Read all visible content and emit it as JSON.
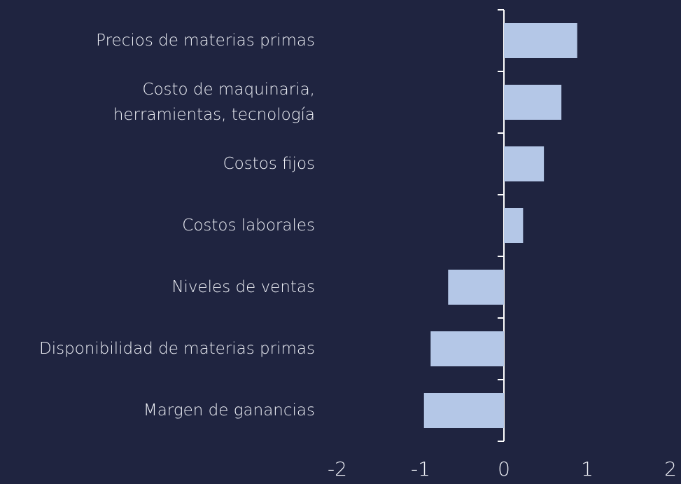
{
  "chart_data": {
    "type": "barh",
    "categories": [
      "Precios de materias primas",
      "Costo de maquinaria,\nherramientas, tecnología",
      "Costos fijos",
      "Costos laborales",
      "Niveles de ventas",
      "Disponibilidad de materias primas",
      "Margen de ganancias"
    ],
    "values": [
      0.88,
      0.69,
      0.48,
      0.23,
      -0.67,
      -0.88,
      -0.96
    ],
    "color": "#b4c7e7",
    "xlim": [
      -2,
      2
    ],
    "xticks": [
      -2,
      -1,
      0,
      1,
      2
    ]
  }
}
